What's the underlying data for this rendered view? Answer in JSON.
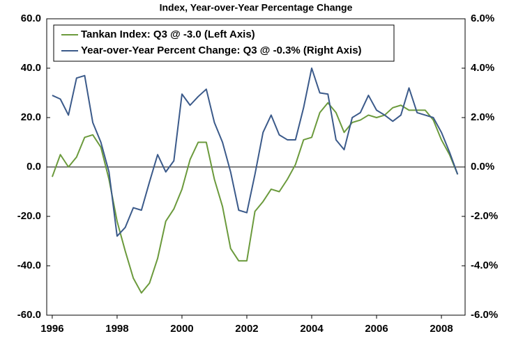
{
  "chart_data": {
    "type": "line",
    "title": "Index, Year-over-Year Percentage Change",
    "x": [
      1996,
      1996.25,
      1996.5,
      1996.75,
      1997,
      1997.25,
      1997.5,
      1997.75,
      1998,
      1998.25,
      1998.5,
      1998.75,
      1999,
      1999.25,
      1999.5,
      1999.75,
      2000,
      2000.25,
      2000.5,
      2000.75,
      2001,
      2001.25,
      2001.5,
      2001.75,
      2002,
      2002.25,
      2002.5,
      2002.75,
      2003,
      2003.25,
      2003.5,
      2003.75,
      2004,
      2004.25,
      2004.5,
      2004.75,
      2005,
      2005.25,
      2005.5,
      2005.75,
      2006,
      2006.25,
      2006.5,
      2006.75,
      2007,
      2007.25,
      2007.5,
      2007.75,
      2008,
      2008.25,
      2008.5
    ],
    "series": [
      {
        "name": "Tankan Index: Q3 @ -3.0 (Left Axis)",
        "color": "#6b9a3c",
        "values": [
          -4,
          5,
          0,
          4,
          12,
          13,
          8,
          -5,
          -22,
          -34,
          -45,
          -51,
          -47,
          -37,
          -22,
          -17,
          -9,
          3,
          10,
          10,
          -5,
          -16,
          -33,
          -38,
          -38,
          -18,
          -14,
          -9,
          -10,
          -5,
          1,
          11,
          12,
          22,
          26,
          22,
          14,
          18,
          19,
          21,
          20,
          21,
          24,
          25,
          23,
          23,
          23,
          19,
          11,
          5,
          -3
        ]
      },
      {
        "name": "Year-over-Year Percent Change: Q3 @ -0.3% (Right Axis)",
        "color": "#3b5a8a",
        "axis": "y2",
        "values": [
          2.9,
          2.75,
          2.1,
          3.6,
          3.7,
          1.8,
          1.0,
          -0.2,
          -2.8,
          -2.45,
          -1.65,
          -1.75,
          -0.6,
          0.5,
          -0.2,
          0.25,
          2.95,
          2.5,
          2.85,
          3.15,
          1.8,
          1.0,
          -0.2,
          -1.75,
          -1.85,
          -0.3,
          1.4,
          2.1,
          1.3,
          1.1,
          1.1,
          2.4,
          4.0,
          3.0,
          2.95,
          1.1,
          0.7,
          2.0,
          2.2,
          2.9,
          2.3,
          2.1,
          1.85,
          2.1,
          3.2,
          2.2,
          2.1,
          2.0,
          1.4,
          0.6,
          -0.3
        ]
      }
    ],
    "xlim": [
      1995.83,
      2008.73
    ],
    "xticks": [
      1996,
      1998,
      2000,
      2002,
      2004,
      2006,
      2008
    ],
    "ylim": [
      -60,
      60
    ],
    "yticks": [
      {
        "value": -60,
        "label": "-60.0"
      },
      {
        "value": -40,
        "label": "-40.0"
      },
      {
        "value": -20,
        "label": "-20.0"
      },
      {
        "value": 0,
        "label": "0.0"
      },
      {
        "value": 20,
        "label": "20.0"
      },
      {
        "value": 40,
        "label": "40.0"
      },
      {
        "value": 60,
        "label": "60.0"
      }
    ],
    "y2lim": [
      -6,
      6
    ],
    "y2ticks": [
      {
        "value": -6,
        "label": "-6.0%"
      },
      {
        "value": -4,
        "label": "-4.0%"
      },
      {
        "value": -2,
        "label": "-2.0%"
      },
      {
        "value": 0,
        "label": "0.0%"
      },
      {
        "value": 2,
        "label": "2.0%"
      },
      {
        "value": 4,
        "label": "4.0%"
      },
      {
        "value": 6,
        "label": "6.0%"
      }
    ],
    "legend": "upper left"
  }
}
